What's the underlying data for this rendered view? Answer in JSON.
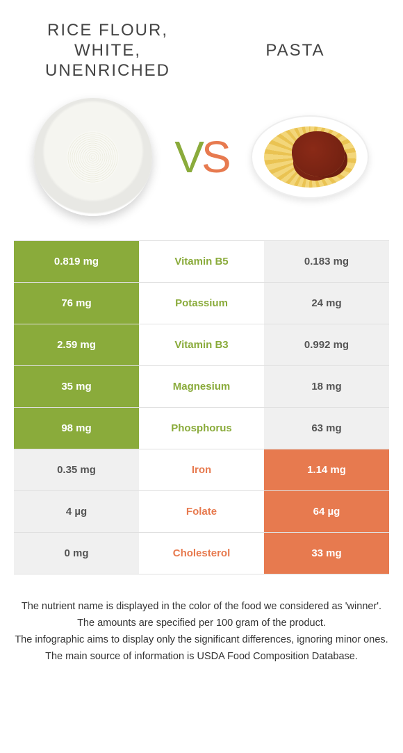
{
  "colors": {
    "green": "#8aab3b",
    "orange": "#e77a4f",
    "neutral": "#f0f0f0"
  },
  "header": {
    "left_title": "RICE FLOUR,\nWHITE,\nUNENRICHED",
    "right_title": "PASTA",
    "vs_v": "V",
    "vs_s": "S"
  },
  "rows": [
    {
      "nutrient": "Vitamin B5",
      "left": "0.819 mg",
      "right": "0.183 mg",
      "winner": "left"
    },
    {
      "nutrient": "Potassium",
      "left": "76 mg",
      "right": "24 mg",
      "winner": "left"
    },
    {
      "nutrient": "Vitamin B3",
      "left": "2.59 mg",
      "right": "0.992 mg",
      "winner": "left"
    },
    {
      "nutrient": "Magnesium",
      "left": "35 mg",
      "right": "18 mg",
      "winner": "left"
    },
    {
      "nutrient": "Phosphorus",
      "left": "98 mg",
      "right": "63 mg",
      "winner": "left"
    },
    {
      "nutrient": "Iron",
      "left": "0.35 mg",
      "right": "1.14 mg",
      "winner": "right"
    },
    {
      "nutrient": "Folate",
      "left": "4 µg",
      "right": "64 µg",
      "winner": "right"
    },
    {
      "nutrient": "Cholesterol",
      "left": "0 mg",
      "right": "33 mg",
      "winner": "right"
    }
  ],
  "footnotes": [
    "The nutrient name is displayed in the color of the food we considered as 'winner'.",
    "The amounts are specified per 100 gram of the product.",
    "The infographic aims to display only the significant differences, ignoring minor ones.",
    "The main source of information is USDA Food Composition Database."
  ]
}
